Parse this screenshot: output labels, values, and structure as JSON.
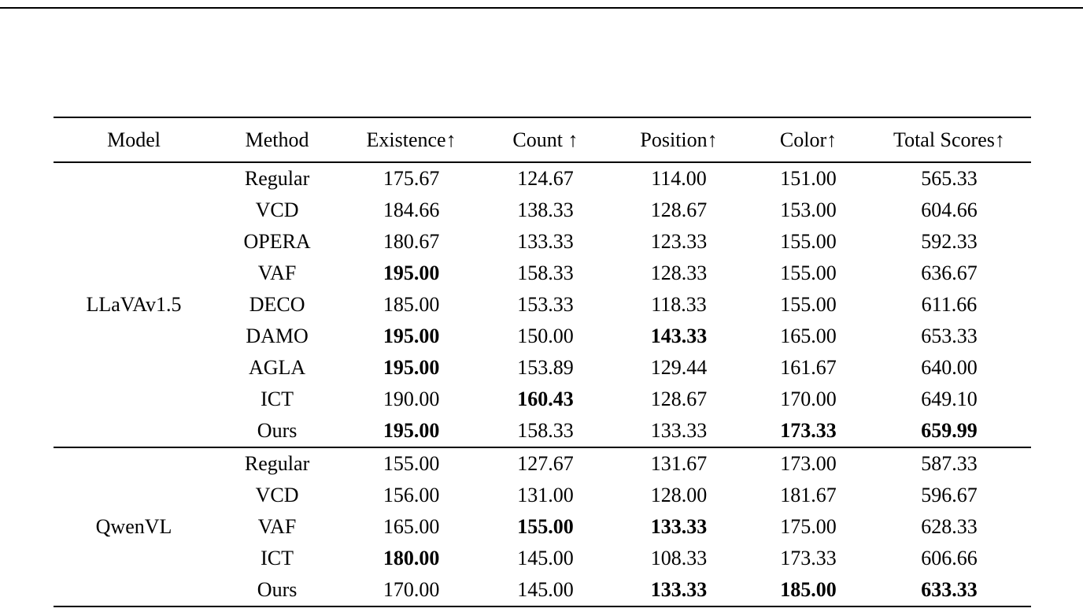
{
  "page": {
    "background": "#ffffff",
    "text_color": "#000000"
  },
  "chart_data": {
    "type": "table",
    "title": "",
    "columns": [
      "Model",
      "Method",
      "Existence↑",
      "Count ↑",
      "Position↑",
      "Color↑",
      "Total Scores↑"
    ],
    "groups": [
      {
        "model": "LLaVAv1.5",
        "rows": [
          {
            "method": "Regular",
            "values": [
              "175.67",
              "124.67",
              "114.00",
              "151.00",
              "565.33"
            ],
            "bold": [
              false,
              false,
              false,
              false,
              false
            ]
          },
          {
            "method": "VCD",
            "values": [
              "184.66",
              "138.33",
              "128.67",
              "153.00",
              "604.66"
            ],
            "bold": [
              false,
              false,
              false,
              false,
              false
            ]
          },
          {
            "method": "OPERA",
            "values": [
              "180.67",
              "133.33",
              "123.33",
              "155.00",
              "592.33"
            ],
            "bold": [
              false,
              false,
              false,
              false,
              false
            ]
          },
          {
            "method": "VAF",
            "values": [
              "195.00",
              "158.33",
              "128.33",
              "155.00",
              "636.67"
            ],
            "bold": [
              true,
              false,
              false,
              false,
              false
            ]
          },
          {
            "method": "DECO",
            "values": [
              "185.00",
              "153.33",
              "118.33",
              "155.00",
              "611.66"
            ],
            "bold": [
              false,
              false,
              false,
              false,
              false
            ]
          },
          {
            "method": "DAMO",
            "values": [
              "195.00",
              "150.00",
              "143.33",
              "165.00",
              "653.33"
            ],
            "bold": [
              true,
              false,
              true,
              false,
              false
            ]
          },
          {
            "method": "AGLA",
            "values": [
              "195.00",
              "153.89",
              "129.44",
              "161.67",
              "640.00"
            ],
            "bold": [
              true,
              false,
              false,
              false,
              false
            ]
          },
          {
            "method": "ICT",
            "values": [
              "190.00",
              "160.43",
              "128.67",
              "170.00",
              "649.10"
            ],
            "bold": [
              false,
              true,
              false,
              false,
              false
            ]
          },
          {
            "method": "Ours",
            "values": [
              "195.00",
              "158.33",
              "133.33",
              "173.33",
              "659.99"
            ],
            "bold": [
              true,
              false,
              false,
              true,
              true
            ]
          }
        ]
      },
      {
        "model": "QwenVL",
        "rows": [
          {
            "method": "Regular",
            "values": [
              "155.00",
              "127.67",
              "131.67",
              "173.00",
              "587.33"
            ],
            "bold": [
              false,
              false,
              false,
              false,
              false
            ]
          },
          {
            "method": "VCD",
            "values": [
              "156.00",
              "131.00",
              "128.00",
              "181.67",
              "596.67"
            ],
            "bold": [
              false,
              false,
              false,
              false,
              false
            ]
          },
          {
            "method": "VAF",
            "values": [
              "165.00",
              "155.00",
              "133.33",
              "175.00",
              "628.33"
            ],
            "bold": [
              false,
              true,
              true,
              false,
              false
            ]
          },
          {
            "method": "ICT",
            "values": [
              "180.00",
              "145.00",
              "108.33",
              "173.33",
              "606.66"
            ],
            "bold": [
              true,
              false,
              false,
              false,
              false
            ]
          },
          {
            "method": "Ours",
            "values": [
              "170.00",
              "145.00",
              "133.33",
              "185.00",
              "633.33"
            ],
            "bold": [
              false,
              false,
              true,
              true,
              true
            ]
          }
        ]
      }
    ]
  }
}
